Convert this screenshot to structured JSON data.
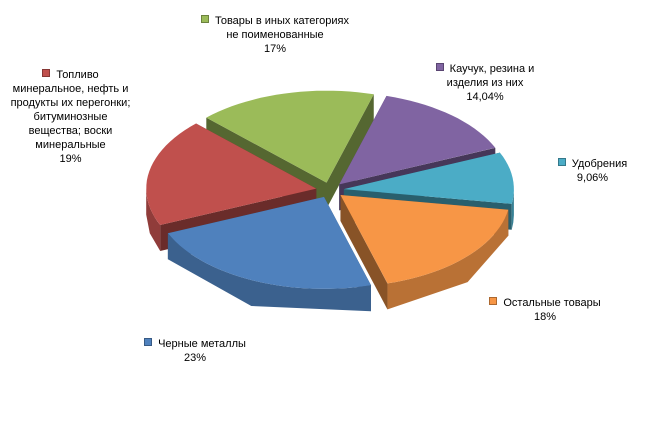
{
  "chart_data": {
    "type": "pie3d",
    "categories": [
      "Товары в иных категориях не поименованные",
      "Каучук, резина и изделия из них",
      "Удобрения",
      "Остальные товары",
      "Черные металлы",
      "Топливо минеральное, нефть и продукты их перегонки; битуминозные вещества; воски минеральные"
    ],
    "values": [
      17,
      14.04,
      9.06,
      18,
      23,
      19
    ],
    "value_labels": [
      "17%",
      "14,04%",
      "9,06%",
      "18%",
      "23%",
      "19%"
    ],
    "colors": [
      "#9bbb59",
      "#8064a2",
      "#4bacc6",
      "#f79646",
      "#4f81bd",
      "#c0504d"
    ]
  }
}
